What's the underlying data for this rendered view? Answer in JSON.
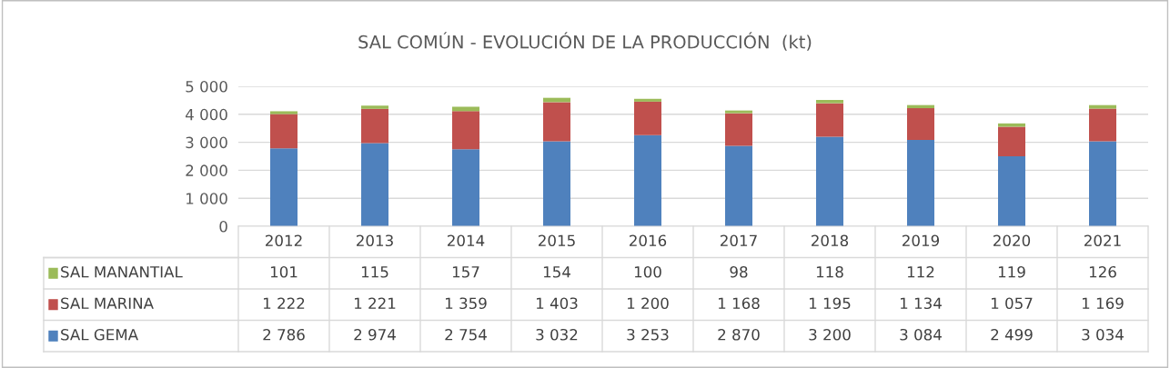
{
  "chart_data": {
    "type": "bar",
    "title": "SAL COMÚN - EVOLUCIÓN DE LA PRODUCCIÓN  (kt)",
    "stacked": true,
    "grid": "y",
    "legend": "bottom",
    "categories": [
      "2012",
      "2013",
      "2014",
      "2015",
      "2016",
      "2017",
      "2018",
      "2019",
      "2020",
      "2021"
    ],
    "ylim": [
      0,
      5000
    ],
    "yticks": [
      0,
      {
        "value": 1000,
        "label": "1 000"
      },
      {
        "value": 2000,
        "label": "2 000"
      },
      {
        "value": 3000,
        "label": "3 000"
      },
      {
        "value": 4000,
        "label": "4 000"
      },
      {
        "value": 5000,
        "label": "5 000"
      }
    ],
    "series": [
      {
        "name": "SAL GEMA",
        "color": "#4f81bd",
        "values": [
          2786,
          2974,
          2754,
          3032,
          3253,
          2870,
          3200,
          3084,
          2499,
          3034
        ],
        "value_labels": [
          "2 786",
          "2 974",
          "2 754",
          "3 032",
          "3 253",
          "2 870",
          "3 200",
          "3 084",
          "2 499",
          "3 034"
        ]
      },
      {
        "name": "SAL MARINA",
        "color": "#c0504d",
        "values": [
          1222,
          1221,
          1359,
          1403,
          1200,
          1168,
          1195,
          1134,
          1057,
          1169
        ],
        "value_labels": [
          "1 222",
          "1 221",
          "1 359",
          "1 403",
          "1 200",
          "1 168",
          "1 195",
          "1 134",
          "1 057",
          "1 169"
        ]
      },
      {
        "name": "SAL MANANTIAL",
        "color": "#9bbb59",
        "values": [
          101,
          115,
          157,
          154,
          100,
          98,
          118,
          112,
          119,
          126
        ],
        "value_labels": [
          "101",
          "115",
          "157",
          "154",
          "100",
          "98",
          "118",
          "112",
          "119",
          "126"
        ]
      }
    ]
  }
}
